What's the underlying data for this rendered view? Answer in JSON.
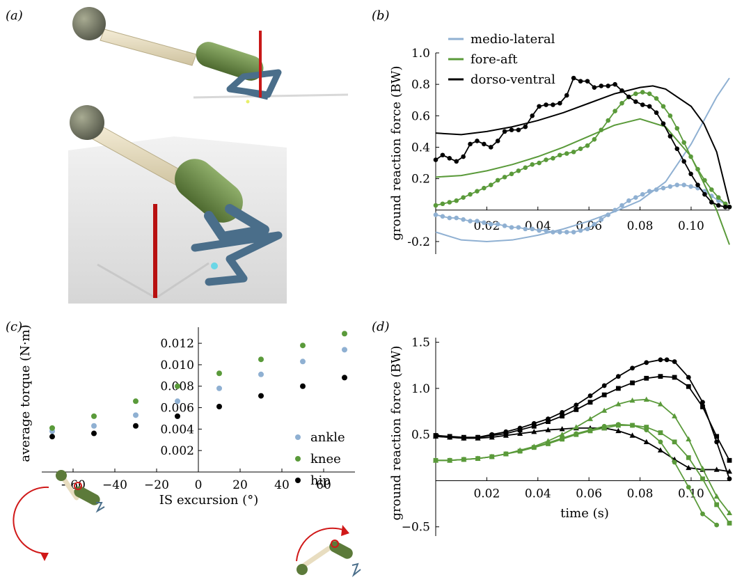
{
  "colors": {
    "medio": "#8fb0d2",
    "fore": "#5a9a3a",
    "dorso": "#000000",
    "red": "#d01818",
    "limb_blue": "#4a6e8a",
    "limb_green": "#5c7a3a",
    "bone": "#e8ddc0",
    "head": "#6b6e55"
  },
  "panels": {
    "a": "(a)",
    "b": "(b)",
    "c": "(c)",
    "d": "(d)"
  },
  "chart_data": [
    {
      "panel": "b",
      "type": "line",
      "ylabel": "ground reaction force (BW)",
      "xlabel": "",
      "xlim": [
        0,
        0.115
      ],
      "ylim": [
        -0.28,
        1.0
      ],
      "xticks": [
        0.02,
        0.04,
        0.06,
        0.08,
        0.1
      ],
      "xtick_labels": [
        "0.02",
        "0.04",
        "0.06",
        "0.08",
        "0.10"
      ],
      "yticks": [
        -0.2,
        0.2,
        0.4,
        0.6,
        0.8,
        1.0
      ],
      "ytick_labels": [
        "-0.2",
        "0.2",
        "0.4",
        "0.6",
        "0.8",
        "1.0"
      ],
      "legend": [
        "medio-lateral",
        "fore-aft",
        "dorso-ventral"
      ],
      "series": [
        {
          "name": "medio-lateral",
          "style": "line",
          "color": "#8fb0d2",
          "x": [
            0,
            0.01,
            0.02,
            0.03,
            0.04,
            0.05,
            0.06,
            0.07,
            0.08,
            0.09,
            0.1,
            0.11,
            0.115
          ],
          "y": [
            -0.14,
            -0.19,
            -0.2,
            -0.19,
            -0.16,
            -0.12,
            -0.07,
            -0.01,
            0.06,
            0.18,
            0.42,
            0.72,
            0.84
          ]
        },
        {
          "name": "medio-lateral",
          "style": "dots",
          "color": "#8fb0d2",
          "x": [
            0,
            0.0027,
            0.0054,
            0.0081,
            0.0108,
            0.0135,
            0.0162,
            0.0189,
            0.0216,
            0.0243,
            0.027,
            0.0297,
            0.0324,
            0.0351,
            0.0378,
            0.0405,
            0.0432,
            0.0459,
            0.0486,
            0.0513,
            0.054,
            0.0567,
            0.0594,
            0.0621,
            0.0648,
            0.0675,
            0.0702,
            0.0729,
            0.0756,
            0.0783,
            0.081,
            0.0837,
            0.0864,
            0.0891,
            0.0918,
            0.0945,
            0.0972,
            0.0999,
            0.1026,
            0.1053,
            0.108,
            0.1107,
            0.1134,
            0.115
          ],
          "y": [
            -0.03,
            -0.04,
            -0.05,
            -0.05,
            -0.06,
            -0.07,
            -0.07,
            -0.08,
            -0.09,
            -0.09,
            -0.1,
            -0.11,
            -0.11,
            -0.12,
            -0.12,
            -0.13,
            -0.13,
            -0.14,
            -0.14,
            -0.14,
            -0.14,
            -0.13,
            -0.12,
            -0.09,
            -0.06,
            -0.03,
            0.0,
            0.03,
            0.06,
            0.08,
            0.1,
            0.12,
            0.13,
            0.14,
            0.15,
            0.16,
            0.16,
            0.15,
            0.14,
            0.12,
            0.09,
            0.06,
            0.04,
            0.02
          ]
        },
        {
          "name": "fore-aft",
          "style": "line",
          "color": "#5a9a3a",
          "x": [
            0,
            0.01,
            0.02,
            0.03,
            0.04,
            0.05,
            0.06,
            0.07,
            0.08,
            0.09,
            0.1,
            0.11,
            0.115
          ],
          "y": [
            0.21,
            0.22,
            0.25,
            0.29,
            0.34,
            0.4,
            0.47,
            0.54,
            0.58,
            0.53,
            0.34,
            0.0,
            -0.22
          ]
        },
        {
          "name": "fore-aft",
          "style": "dots",
          "color": "#5a9a3a",
          "x": [
            0,
            0.0027,
            0.0054,
            0.0081,
            0.0108,
            0.0135,
            0.0162,
            0.0189,
            0.0216,
            0.0243,
            0.027,
            0.0297,
            0.0324,
            0.0351,
            0.0378,
            0.0405,
            0.0432,
            0.0459,
            0.0486,
            0.0513,
            0.054,
            0.0567,
            0.0594,
            0.0621,
            0.0648,
            0.0675,
            0.0702,
            0.0729,
            0.0756,
            0.0783,
            0.081,
            0.0837,
            0.0864,
            0.0891,
            0.0918,
            0.0945,
            0.0972,
            0.0999,
            0.1026,
            0.1053,
            0.108,
            0.1107,
            0.1134,
            0.115
          ],
          "y": [
            0.03,
            0.04,
            0.05,
            0.06,
            0.08,
            0.1,
            0.12,
            0.14,
            0.16,
            0.19,
            0.21,
            0.23,
            0.25,
            0.27,
            0.29,
            0.3,
            0.32,
            0.33,
            0.35,
            0.36,
            0.37,
            0.39,
            0.41,
            0.45,
            0.51,
            0.57,
            0.63,
            0.68,
            0.72,
            0.74,
            0.75,
            0.74,
            0.71,
            0.66,
            0.6,
            0.52,
            0.43,
            0.34,
            0.26,
            0.19,
            0.13,
            0.08,
            0.04,
            0.02
          ]
        },
        {
          "name": "dorso-ventral",
          "style": "line",
          "color": "#000000",
          "x": [
            0,
            0.01,
            0.02,
            0.03,
            0.04,
            0.05,
            0.06,
            0.07,
            0.08,
            0.085,
            0.09,
            0.1,
            0.105,
            0.11,
            0.115
          ],
          "y": [
            0.49,
            0.48,
            0.5,
            0.53,
            0.57,
            0.62,
            0.68,
            0.74,
            0.78,
            0.79,
            0.77,
            0.66,
            0.55,
            0.37,
            0.04
          ]
        },
        {
          "name": "dorso-ventral",
          "style": "dots",
          "color": "#000000",
          "x": [
            0,
            0.0027,
            0.0054,
            0.0081,
            0.0108,
            0.0135,
            0.0162,
            0.0189,
            0.0216,
            0.0243,
            0.027,
            0.0297,
            0.0324,
            0.0351,
            0.0378,
            0.0405,
            0.0432,
            0.0459,
            0.0486,
            0.0513,
            0.054,
            0.0567,
            0.0594,
            0.0621,
            0.0648,
            0.0675,
            0.0702,
            0.0729,
            0.0756,
            0.0783,
            0.081,
            0.0837,
            0.0864,
            0.0891,
            0.0918,
            0.0945,
            0.0972,
            0.0999,
            0.1026,
            0.1053,
            0.108,
            0.1107,
            0.1134,
            0.115
          ],
          "y": [
            0.32,
            0.35,
            0.33,
            0.31,
            0.34,
            0.42,
            0.44,
            0.42,
            0.4,
            0.44,
            0.5,
            0.51,
            0.51,
            0.53,
            0.6,
            0.66,
            0.67,
            0.67,
            0.68,
            0.73,
            0.84,
            0.82,
            0.82,
            0.78,
            0.79,
            0.79,
            0.8,
            0.76,
            0.72,
            0.69,
            0.67,
            0.66,
            0.62,
            0.55,
            0.47,
            0.39,
            0.31,
            0.23,
            0.16,
            0.1,
            0.05,
            0.03,
            0.02,
            0.02
          ]
        }
      ]
    },
    {
      "panel": "c",
      "type": "scatter",
      "ylabel": "average torque (N·m)",
      "xlabel": "IS excursion (°)",
      "xlim": [
        -75,
        75
      ],
      "ylim": [
        0.0,
        0.0135
      ],
      "xticks": [
        -60,
        -40,
        -20,
        0,
        20,
        40,
        60
      ],
      "xtick_labels": [
        "−60",
        "−40",
        "−20",
        "0",
        "20",
        "40",
        "60"
      ],
      "yticks": [
        0.002,
        0.004,
        0.006,
        0.008,
        0.01,
        0.012
      ],
      "ytick_labels": [
        "0.002",
        "0.004",
        "0.006",
        "0.008",
        "0.010",
        "0.012"
      ],
      "legend": [
        "ankle",
        "knee",
        "hip"
      ],
      "series": [
        {
          "name": "ankle",
          "color": "#8fb0d2",
          "x": [
            -70,
            -50,
            -30,
            -10,
            10,
            30,
            50,
            70
          ],
          "y": [
            0.0038,
            0.0043,
            0.0053,
            0.0066,
            0.0078,
            0.0091,
            0.0103,
            0.0114
          ]
        },
        {
          "name": "knee",
          "color": "#5a9a3a",
          "x": [
            -70,
            -50,
            -30,
            -10,
            10,
            30,
            50,
            70
          ],
          "y": [
            0.0041,
            0.0052,
            0.0066,
            0.008,
            0.0092,
            0.0105,
            0.0118,
            0.0129
          ]
        },
        {
          "name": "hip",
          "color": "#000000",
          "x": [
            -70,
            -50,
            -30,
            -10,
            10,
            30,
            50,
            70
          ],
          "y": [
            0.0033,
            0.0036,
            0.0043,
            0.0052,
            0.0061,
            0.0071,
            0.008,
            0.0088
          ]
        }
      ]
    },
    {
      "panel": "d",
      "type": "line",
      "ylabel": "ground reaction force (BW)",
      "xlabel": "time (s)",
      "xlim": [
        0,
        0.115
      ],
      "ylim": [
        -0.6,
        1.55
      ],
      "xticks": [
        0.02,
        0.04,
        0.06,
        0.08,
        0.1
      ],
      "xtick_labels": [
        "0.02",
        "0.04",
        "0.06",
        "0.08",
        "0.10"
      ],
      "yticks": [
        -0.5,
        0.5,
        1.0,
        1.5
      ],
      "ytick_labels": [
        "−0.5",
        "0.5",
        "1.0",
        "1.5"
      ],
      "series": [
        {
          "name": "",
          "marker": "circle",
          "color": "#000000",
          "x": [
            0,
            0.0055,
            0.011,
            0.0165,
            0.022,
            0.0275,
            0.033,
            0.0385,
            0.044,
            0.0495,
            0.055,
            0.0605,
            0.066,
            0.0715,
            0.077,
            0.0825,
            0.088,
            0.0905,
            0.0935,
            0.099,
            0.1045,
            0.11,
            0.115
          ],
          "y": [
            0.48,
            0.47,
            0.46,
            0.47,
            0.5,
            0.53,
            0.57,
            0.62,
            0.67,
            0.74,
            0.82,
            0.92,
            1.03,
            1.13,
            1.22,
            1.28,
            1.31,
            1.31,
            1.29,
            1.12,
            0.85,
            0.42,
            0.02
          ]
        },
        {
          "name": "",
          "marker": "square",
          "color": "#000000",
          "x": [
            0,
            0.0055,
            0.011,
            0.0165,
            0.022,
            0.0275,
            0.033,
            0.0385,
            0.044,
            0.0495,
            0.055,
            0.0605,
            0.066,
            0.0715,
            0.077,
            0.0825,
            0.088,
            0.0935,
            0.099,
            0.1045,
            0.11,
            0.115
          ],
          "y": [
            0.49,
            0.48,
            0.47,
            0.47,
            0.49,
            0.51,
            0.55,
            0.59,
            0.64,
            0.7,
            0.77,
            0.85,
            0.93,
            1.0,
            1.06,
            1.11,
            1.13,
            1.12,
            1.02,
            0.8,
            0.48,
            0.22
          ]
        },
        {
          "name": "",
          "marker": "triangle",
          "color": "#000000",
          "x": [
            0,
            0.0055,
            0.011,
            0.0165,
            0.022,
            0.0275,
            0.033,
            0.0385,
            0.044,
            0.0495,
            0.055,
            0.0605,
            0.066,
            0.0715,
            0.077,
            0.0825,
            0.088,
            0.0935,
            0.099,
            0.1045,
            0.11,
            0.115
          ],
          "y": [
            0.48,
            0.47,
            0.46,
            0.46,
            0.47,
            0.49,
            0.51,
            0.53,
            0.55,
            0.56,
            0.57,
            0.57,
            0.57,
            0.54,
            0.49,
            0.42,
            0.33,
            0.23,
            0.14,
            0.12,
            0.12,
            0.1
          ]
        },
        {
          "name": "",
          "marker": "circle",
          "color": "#5a9a3a",
          "x": [
            0,
            0.0055,
            0.011,
            0.0165,
            0.022,
            0.0275,
            0.033,
            0.0385,
            0.044,
            0.0495,
            0.055,
            0.0605,
            0.066,
            0.0715,
            0.077,
            0.0825,
            0.088,
            0.0935,
            0.099,
            0.1045,
            0.11
          ],
          "y": [
            0.22,
            0.22,
            0.23,
            0.24,
            0.26,
            0.29,
            0.32,
            0.36,
            0.41,
            0.46,
            0.51,
            0.55,
            0.59,
            0.61,
            0.6,
            0.55,
            0.42,
            0.2,
            -0.07,
            -0.36,
            -0.48
          ]
        },
        {
          "name": "",
          "marker": "square",
          "color": "#5a9a3a",
          "x": [
            0,
            0.0055,
            0.011,
            0.0165,
            0.022,
            0.0275,
            0.033,
            0.0385,
            0.044,
            0.0495,
            0.055,
            0.0605,
            0.066,
            0.0715,
            0.077,
            0.0825,
            0.088,
            0.0935,
            0.099,
            0.1045,
            0.11,
            0.115
          ],
          "y": [
            0.22,
            0.22,
            0.23,
            0.24,
            0.26,
            0.29,
            0.32,
            0.36,
            0.4,
            0.45,
            0.5,
            0.54,
            0.57,
            0.6,
            0.6,
            0.58,
            0.52,
            0.42,
            0.25,
            0.02,
            -0.26,
            -0.46
          ]
        },
        {
          "name": "",
          "marker": "triangle",
          "color": "#5a9a3a",
          "x": [
            0,
            0.0055,
            0.011,
            0.0165,
            0.022,
            0.0275,
            0.033,
            0.0385,
            0.044,
            0.0495,
            0.055,
            0.0605,
            0.066,
            0.0715,
            0.077,
            0.0825,
            0.088,
            0.0935,
            0.099,
            0.1045,
            0.11,
            0.115
          ],
          "y": [
            0.22,
            0.22,
            0.23,
            0.24,
            0.26,
            0.29,
            0.33,
            0.37,
            0.43,
            0.5,
            0.58,
            0.67,
            0.76,
            0.83,
            0.87,
            0.88,
            0.83,
            0.7,
            0.45,
            0.13,
            -0.17,
            -0.35
          ]
        }
      ]
    }
  ]
}
